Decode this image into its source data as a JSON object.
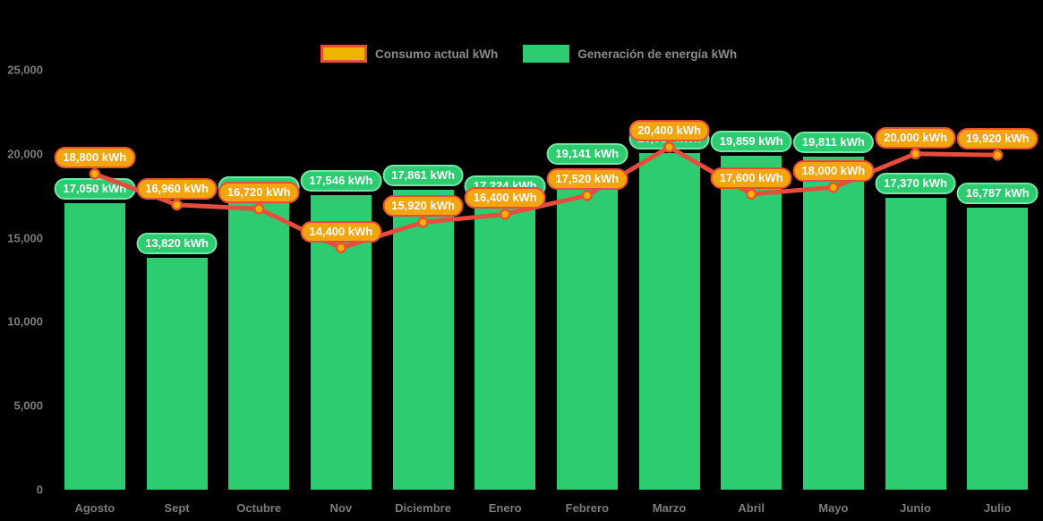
{
  "legend": {
    "items": [
      {
        "label": "Consumo actual kWh",
        "swatch_fill": "#f0b400",
        "swatch_border": "#e74c3c"
      },
      {
        "label": "Generación de energía kWh",
        "swatch_fill": "#2ecc71",
        "swatch_border": "#2ecc71"
      }
    ]
  },
  "chart_data": {
    "type": "bar+line combo",
    "title": "",
    "xlabel": "",
    "ylabel": "",
    "ylim": [
      0,
      25000
    ],
    "y_tick_labels": [
      "0",
      "5,000",
      "10,000",
      "15,000",
      "20,000",
      "25,000"
    ],
    "y_tick_values": [
      0,
      5000,
      10000,
      15000,
      20000,
      25000
    ],
    "grid": false,
    "legend_position": "top-center",
    "background_color": "#000000",
    "axis_text_color": "#7c7c7c",
    "categories": [
      "Agosto",
      "Sept",
      "Octubre",
      "Nov",
      "Diciembre",
      "Enero",
      "Febrero",
      "Marzo",
      "Abril",
      "Mayo",
      "Junio",
      "Julio"
    ],
    "series": [
      {
        "name": "Generación de energía kWh",
        "type": "bar",
        "bar_color": "#2ecc71",
        "label_bg": "#2ecc71",
        "label_border": "#74e6a6",
        "values": [
          17050,
          13820,
          17178,
          17546,
          17861,
          17224,
          19141,
          20030,
          19859,
          19811,
          17370,
          16787
        ],
        "labels": [
          "17,050 kWh",
          "13,820 kWh",
          "17,178 kWh",
          "17,546 kWh",
          "17,861 kWh",
          "17,224 kWh",
          "19,141 kWh",
          "20,030 kWh",
          "19,859 kWh",
          "19,811 kWh",
          "17,370 kWh",
          "16,787 kWh"
        ],
        "note": "Marzo label is occluded by the Consumo label in the screenshot; value estimated from bar height"
      },
      {
        "name": "Consumo actual kWh",
        "type": "line",
        "line_color": "#e74c3c",
        "point_fill": "#f5b301",
        "point_stroke": "#e8542f",
        "label_bg": "#f2a50c",
        "label_border": "#e74c3c",
        "values": [
          18800,
          16960,
          16720,
          14400,
          15920,
          16400,
          17520,
          20400,
          17600,
          18000,
          20000,
          19920
        ],
        "labels": [
          "18,800 kWh",
          "16,960 kWh",
          "16,720 kWh",
          "14,400 kWh",
          "15,920 kWh",
          "16,400 kWh",
          "17,520 kWh",
          "20,400 kWh",
          "17,600 kWh",
          "18,000 kWh",
          "20,000 kWh",
          "19,920 kWh"
        ]
      }
    ]
  }
}
